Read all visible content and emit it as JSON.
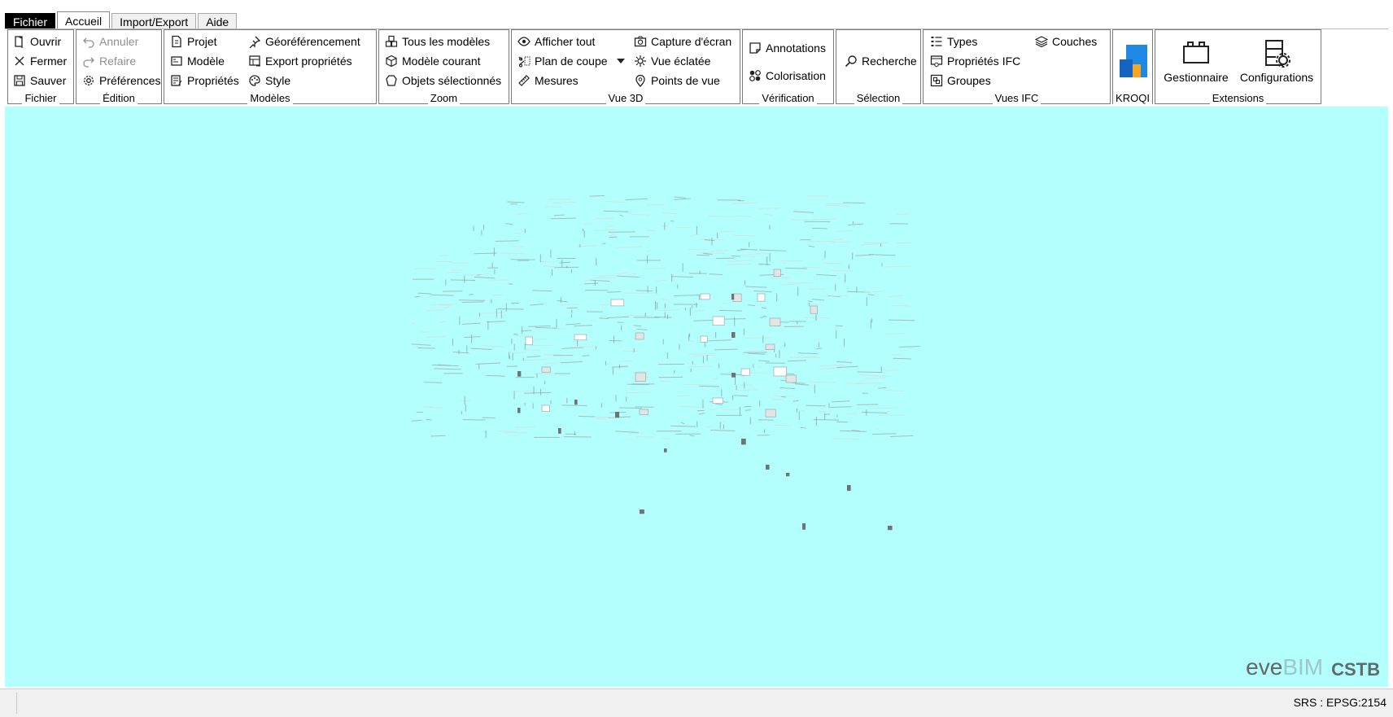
{
  "tabs": [
    {
      "label": "Fichier",
      "state": "active-menu"
    },
    {
      "label": "Accueil",
      "state": "selected"
    },
    {
      "label": "Import/Export",
      "state": ""
    },
    {
      "label": "Aide",
      "state": ""
    }
  ],
  "groups": {
    "fichier": {
      "title": "Fichier",
      "ouvrir": "Ouvrir",
      "fermer": "Fermer",
      "sauver": "Sauver"
    },
    "edition": {
      "title": "Édition",
      "annuler": "Annuler",
      "refaire": "Refaire",
      "preferences": "Préférences"
    },
    "modeles": {
      "title": "Modèles",
      "projet": "Projet",
      "modele": "Modèle",
      "proprietes": "Propriétés",
      "georef": "Géoréférencement",
      "export_props": "Export propriétés",
      "style": "Style"
    },
    "zoom": {
      "title": "Zoom",
      "tous": "Tous les modèles",
      "courant": "Modèle courant",
      "objets": "Objets sélectionnés"
    },
    "vue3d": {
      "title": "Vue 3D",
      "afficher": "Afficher tout",
      "plan": "Plan de coupe",
      "mesures": "Mesures",
      "capture": "Capture d'écran",
      "eclatee": "Vue éclatée",
      "points": "Points de vue"
    },
    "verification": {
      "title": "Vérification",
      "annotations": "Annotations",
      "colorisation": "Colorisation"
    },
    "selection": {
      "title": "Sélection",
      "recherche": "Recherche"
    },
    "vuesifc": {
      "title": "Vues IFC",
      "types": "Types",
      "props": "Propriétés IFC",
      "groupes": "Groupes",
      "couches": "Couches"
    },
    "kroqi": {
      "title": "KROQI"
    },
    "extensions": {
      "title": "Extensions",
      "gestionnaire": "Gestionnaire",
      "configurations": "Configurations"
    }
  },
  "logo": {
    "eve": "eve",
    "bim": "BIM",
    "cstb": "CSTB"
  },
  "status": {
    "srs": "SRS : EPSG:2154"
  },
  "colors": {
    "viewport": "#b2fffe",
    "accent_blue": "#1e88e5",
    "accent_orange": "#f6a623"
  }
}
